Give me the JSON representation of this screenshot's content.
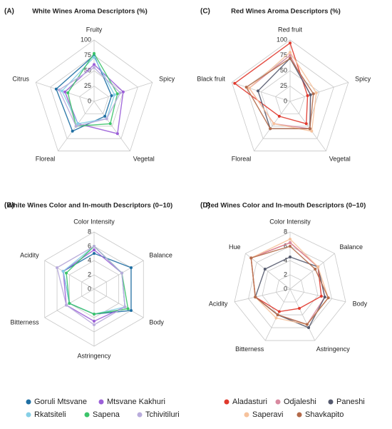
{
  "chart_data": [
    {
      "type": "radar",
      "panel": "(A)",
      "title": "White Wines Aroma Descriptors (%)",
      "categories": [
        "Fruity",
        "Spicy",
        "Vegetal",
        "Floreal",
        "Citrus"
      ],
      "rlim": [
        0,
        100
      ],
      "rticks": [
        0,
        25,
        50,
        75,
        100
      ],
      "series": [
        {
          "name": "Goruli Mtsvane",
          "color": "#1f6fa3",
          "values": [
            75,
            30,
            30,
            60,
            65
          ]
        },
        {
          "name": "Mtsvane Kakhuri",
          "color": "#9b5fd8",
          "values": [
            60,
            50,
            65,
            45,
            50
          ]
        },
        {
          "name": "Rkatsiteli",
          "color": "#86cfe6",
          "values": [
            72,
            35,
            35,
            45,
            55
          ]
        },
        {
          "name": "Sapena",
          "color": "#3cc46a",
          "values": [
            78,
            40,
            45,
            50,
            45
          ]
        },
        {
          "name": "Tchivitiluri",
          "color": "#b9acdc",
          "values": [
            55,
            45,
            35,
            50,
            60
          ]
        }
      ]
    },
    {
      "type": "radar",
      "panel": "(B)",
      "title": "White Wines Color and In-mouth Descriptors (0−10)",
      "categories": [
        "Color Intensity",
        "Balance",
        "Body",
        "Astringency",
        "Bitterness",
        "Acidity"
      ],
      "rlim": [
        0,
        8
      ],
      "rticks": [
        0,
        2,
        4,
        6,
        8
      ],
      "series": [
        {
          "color": "#1f6fa3",
          "values": [
            5,
            6,
            6,
            3.5,
            4,
            5
          ]
        },
        {
          "color": "#9b5fd8",
          "values": [
            5.5,
            4.5,
            5,
            4.5,
            4.5,
            5
          ]
        },
        {
          "color": "#86cfe6",
          "values": [
            6,
            4.5,
            5,
            3.5,
            4,
            5
          ]
        },
        {
          "color": "#3cc46a",
          "values": [
            6,
            4.5,
            5.5,
            3.5,
            4,
            4.5
          ]
        },
        {
          "color": "#b9acdc",
          "values": [
            6,
            4.5,
            5,
            5,
            4.5,
            6
          ]
        }
      ]
    },
    {
      "type": "radar",
      "panel": "(C)",
      "title": "Red Wines Aroma Descriptors (%)",
      "categories": [
        "Red fruit",
        "Spicy",
        "Vegetal",
        "Floreal",
        "Black fruit"
      ],
      "rlim": [
        0,
        100
      ],
      "rticks": [
        0,
        25,
        50,
        75,
        100
      ],
      "series": [
        {
          "name": "Aladasturi",
          "color": "#e0392d",
          "values": [
            95,
            30,
            45,
            30,
            95
          ]
        },
        {
          "name": "Odjaleshi",
          "color": "#d88aa0",
          "values": [
            75,
            35,
            55,
            45,
            70
          ]
        },
        {
          "name": "Paneshi",
          "color": "#555a6e",
          "values": [
            70,
            35,
            55,
            55,
            55
          ]
        },
        {
          "name": "Saperavi",
          "color": "#f6c29c",
          "values": [
            80,
            45,
            60,
            45,
            70
          ]
        },
        {
          "name": "Shavkapito",
          "color": "#b36a4a",
          "values": [
            70,
            40,
            55,
            55,
            75
          ]
        }
      ]
    },
    {
      "type": "radar",
      "panel": "(D)",
      "title": "Red Wines Color and In-mouth Descriptors (0−10)",
      "categories": [
        "Color Intensity",
        "Balance",
        "Body",
        "Astringency",
        "Bitterness",
        "Acidity",
        "Hue"
      ],
      "rlim": [
        0,
        8
      ],
      "rticks": [
        0,
        2,
        4,
        6,
        8
      ],
      "series": [
        {
          "color": "#e0392d",
          "values": [
            6.5,
            5,
            4.5,
            3,
            3.5,
            5,
            7
          ]
        },
        {
          "color": "#d88aa0",
          "values": [
            6.5,
            5,
            5,
            5.5,
            4,
            5,
            7
          ]
        },
        {
          "color": "#555a6e",
          "values": [
            4.5,
            5,
            5,
            6,
            4,
            5,
            4.5
          ]
        },
        {
          "color": "#f6c29c",
          "values": [
            7,
            5,
            5.5,
            5.5,
            4.5,
            5,
            7
          ]
        },
        {
          "color": "#b36a4a",
          "values": [
            6,
            4.5,
            5.5,
            5.5,
            4,
            5,
            7
          ]
        }
      ]
    }
  ]
}
